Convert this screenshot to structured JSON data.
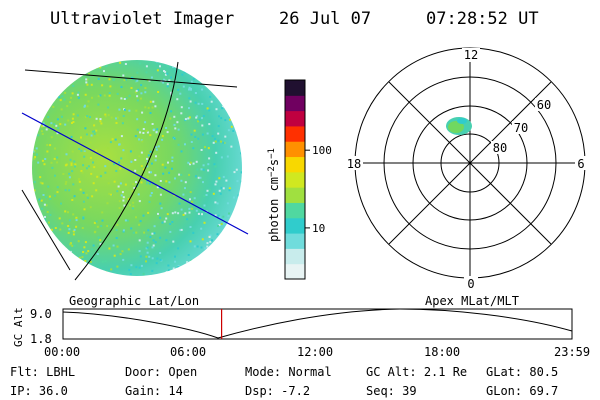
{
  "header": {
    "title": "Ultraviolet Imager",
    "date": "26 Jul 07",
    "time": "07:28:52 UT"
  },
  "image_panel": {
    "label": "Geographic Lat/Lon"
  },
  "colorbar": {
    "unit_label": "photon cm⁻²s⁻¹",
    "unit_base": "photon cm",
    "unit_exp1": "−2",
    "unit_mid": "s",
    "unit_exp2": "−1",
    "ticks": [
      {
        "label": "100",
        "value": 100
      },
      {
        "label": "10",
        "value": 10
      }
    ],
    "colors": [
      "#e8f4f4",
      "#c8ecec",
      "#70dcdc",
      "#30cccc",
      "#50d8a0",
      "#a0e040",
      "#d0e820",
      "#f8d800",
      "#ff9000",
      "#ff3000",
      "#c00040",
      "#700060",
      "#201030"
    ]
  },
  "polar_panel": {
    "label": "Apex MLat/MLT",
    "mlt_labels": {
      "top": "12",
      "bottom": "0",
      "left": "18",
      "right": "6"
    },
    "lat_labels": [
      {
        "label": "60",
        "value": 60
      },
      {
        "label": "70",
        "value": 70
      },
      {
        "label": "80",
        "value": 80
      }
    ]
  },
  "altitude_plot": {
    "ylabel": "GC Alt",
    "y_ticks": [
      "9.0",
      "1.8"
    ],
    "x_ticks": [
      "00:00",
      "06:00",
      "12:00",
      "18:00",
      "23:59"
    ],
    "current_time_hours": 7.48
  },
  "status": {
    "row1": [
      {
        "label": "Flt:",
        "value": "LBHL"
      },
      {
        "label": "Door:",
        "value": "Open"
      },
      {
        "label": "Mode:",
        "value": "Normal"
      },
      {
        "label": "GC Alt:",
        "value": "2.1 Re"
      },
      {
        "label": "GLat:",
        "value": "80.5"
      }
    ],
    "row2": [
      {
        "label": "IP:",
        "value": "36.0"
      },
      {
        "label": "Gain:",
        "value": "14"
      },
      {
        "label": "Dsp:",
        "value": "-7.2"
      },
      {
        "label": "Seq:",
        "value": "39"
      },
      {
        "label": "GLon:",
        "value": "69.7"
      }
    ]
  }
}
